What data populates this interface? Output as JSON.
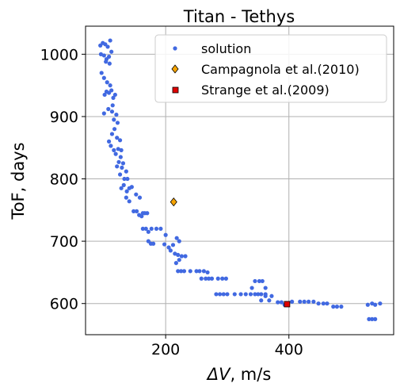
{
  "chart_data": {
    "type": "scatter",
    "title": "Titan - Tethys",
    "xlabel_symbol": "ΔV",
    "xlabel_rest": ", m/s",
    "ylabel": "ToF, days",
    "xlim": [
      70,
      570
    ],
    "ylim": [
      550,
      1045
    ],
    "xticks": [
      200,
      400
    ],
    "yticks": [
      600,
      700,
      800,
      900,
      1000
    ],
    "grid": true,
    "legend_position": "top-right",
    "colors": {
      "solution": "#4169e1",
      "campagnola": "#f5a300",
      "strange": "#e00000",
      "grid": "#b0b0b0"
    },
    "series": [
      {
        "name": "solution",
        "marker": "circle",
        "points": [
          [
            94,
            1014
          ],
          [
            98,
            1018
          ],
          [
            102,
            1016
          ],
          [
            106,
            1012
          ],
          [
            110,
            1022
          ],
          [
            95,
            1000
          ],
          [
            100,
            998
          ],
          [
            104,
            992
          ],
          [
            108,
            996
          ],
          [
            112,
            1004
          ],
          [
            103,
            988
          ],
          [
            109,
            985
          ],
          [
            96,
            970
          ],
          [
            100,
            962
          ],
          [
            105,
            955
          ],
          [
            110,
            950
          ],
          [
            104,
            940
          ],
          [
            108,
            938
          ],
          [
            112,
            942
          ],
          [
            101,
            935
          ],
          [
            115,
            930
          ],
          [
            118,
            935
          ],
          [
            114,
            918
          ],
          [
            107,
            912
          ],
          [
            113,
            908
          ],
          [
            100,
            905
          ],
          [
            120,
            903
          ],
          [
            116,
            895
          ],
          [
            122,
            890
          ],
          [
            117,
            880
          ],
          [
            113,
            872
          ],
          [
            121,
            866
          ],
          [
            108,
            860
          ],
          [
            126,
            862
          ],
          [
            111,
            853
          ],
          [
            116,
            846
          ],
          [
            123,
            848
          ],
          [
            128,
            846
          ],
          [
            119,
            840
          ],
          [
            127,
            835
          ],
          [
            124,
            827
          ],
          [
            131,
            825
          ],
          [
            121,
            820
          ],
          [
            129,
            818
          ],
          [
            136,
            812
          ],
          [
            126,
            807
          ],
          [
            133,
            800
          ],
          [
            138,
            800
          ],
          [
            132,
            790
          ],
          [
            128,
            785
          ],
          [
            137,
            780
          ],
          [
            141,
            785
          ],
          [
            145,
            787
          ],
          [
            136,
            770
          ],
          [
            141,
            764
          ],
          [
            152,
            775
          ],
          [
            158,
            770
          ],
          [
            148,
            748
          ],
          [
            153,
            748
          ],
          [
            157,
            742
          ],
          [
            163,
            745
          ],
          [
            161,
            740
          ],
          [
            166,
            745
          ],
          [
            170,
            745
          ],
          [
            163,
            720
          ],
          [
            168,
            720
          ],
          [
            172,
            715
          ],
          [
            177,
            720
          ],
          [
            185,
            720
          ],
          [
            172,
            700
          ],
          [
            176,
            696
          ],
          [
            180,
            696
          ],
          [
            192,
            720
          ],
          [
            200,
            710
          ],
          [
            198,
            695
          ],
          [
            205,
            690
          ],
          [
            208,
            685
          ],
          [
            212,
            694
          ],
          [
            218,
            705
          ],
          [
            222,
            700
          ],
          [
            215,
            680
          ],
          [
            220,
            678
          ],
          [
            226,
            676
          ],
          [
            232,
            676
          ],
          [
            217,
            665
          ],
          [
            222,
            670
          ],
          [
            220,
            652
          ],
          [
            225,
            652
          ],
          [
            230,
            652
          ],
          [
            240,
            652
          ],
          [
            250,
            652
          ],
          [
            255,
            652
          ],
          [
            262,
            652
          ],
          [
            268,
            650
          ],
          [
            258,
            640
          ],
          [
            265,
            640
          ],
          [
            270,
            640
          ],
          [
            275,
            640
          ],
          [
            285,
            640
          ],
          [
            292,
            640
          ],
          [
            298,
            640
          ],
          [
            282,
            615
          ],
          [
            288,
            615
          ],
          [
            294,
            615
          ],
          [
            300,
            615
          ],
          [
            312,
            615
          ],
          [
            322,
            615
          ],
          [
            330,
            615
          ],
          [
            338,
            615
          ],
          [
            345,
            615
          ],
          [
            350,
            615
          ],
          [
            355,
            615
          ],
          [
            362,
            615
          ],
          [
            340,
            625
          ],
          [
            345,
            636
          ],
          [
            352,
            636
          ],
          [
            357,
            636
          ],
          [
            362,
            625
          ],
          [
            355,
            605
          ],
          [
            362,
            612
          ],
          [
            368,
            605
          ],
          [
            372,
            612
          ],
          [
            382,
            602
          ],
          [
            388,
            602
          ],
          [
            393,
            598
          ],
          [
            405,
            603
          ],
          [
            418,
            603
          ],
          [
            425,
            603
          ],
          [
            432,
            603
          ],
          [
            440,
            603
          ],
          [
            448,
            600
          ],
          [
            456,
            600
          ],
          [
            462,
            600
          ],
          [
            472,
            595
          ],
          [
            478,
            595
          ],
          [
            485,
            595
          ],
          [
            528,
            598
          ],
          [
            535,
            600
          ],
          [
            540,
            598
          ],
          [
            548,
            600
          ],
          [
            535,
            575
          ],
          [
            540,
            575
          ],
          [
            530,
            575
          ]
        ]
      },
      {
        "name": "Campagnola et al.(2010)",
        "marker": "diamond",
        "points": [
          [
            213,
            763
          ]
        ]
      },
      {
        "name": "Strange et al.(2009)",
        "marker": "square",
        "points": [
          [
            397,
            599
          ]
        ]
      }
    ]
  }
}
